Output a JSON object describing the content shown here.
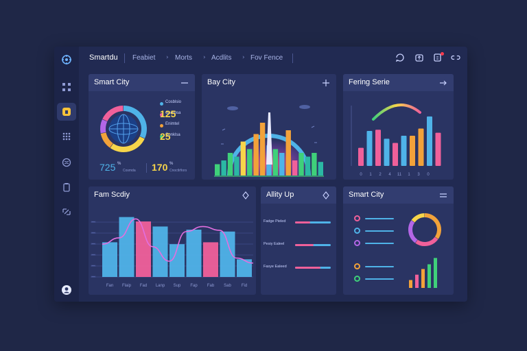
{
  "app": {
    "brand": "Smartdu"
  },
  "nav": {
    "crumbs": [
      "Feabiet",
      "Morts",
      "Acdlits",
      "Fov Fence"
    ]
  },
  "topbar_icons": [
    "chat-icon",
    "share-icon",
    "notification-icon",
    "link-icon"
  ],
  "sidebar": {
    "items": [
      "logo-icon",
      "grid-icon",
      "home-icon",
      "apps-icon",
      "globe-icon",
      "clipboard-icon",
      "analytics-icon",
      "user-icon"
    ]
  },
  "colors": {
    "blue": "#4fb3e8",
    "pink": "#f0609a",
    "orange": "#f2a23a",
    "yellow": "#f7d54a",
    "green": "#3fd07a",
    "purple": "#b366e6",
    "teal": "#2bb8a4"
  },
  "card1": {
    "title": "Smart City",
    "legend": [
      {
        "label": "Cosblsio",
        "color": "#4fb3e8"
      },
      {
        "label": "Gsotbsa",
        "color": "#f0609a"
      },
      {
        "label": "Enimtel",
        "color": "#f2a23a"
      },
      {
        "label": "Conklsa",
        "color": "#3fd07a"
      }
    ],
    "stat_a": "125",
    "stat_b": "25",
    "bottom_a": "725",
    "bottom_a_sup": "%",
    "bottom_a_sub": "Cosmda",
    "bottom_b": "170",
    "bottom_b_sup": "%",
    "bottom_b_sub": "Cnoctlrfiors",
    "ring": [
      {
        "color": "#4fb3e8",
        "value": 32
      },
      {
        "color": "#f7d54a",
        "value": 28
      },
      {
        "color": "#f2a23a",
        "value": 12
      },
      {
        "color": "#b366e6",
        "value": 10
      },
      {
        "color": "#f0609a",
        "value": 18
      }
    ]
  },
  "card2": {
    "title": "Bay City",
    "buildings": [
      {
        "h": 0.15,
        "c": "#3fd07a"
      },
      {
        "h": 0.2,
        "c": "#2bb8a4"
      },
      {
        "h": 0.3,
        "c": "#3fd07a"
      },
      {
        "h": 0.25,
        "c": "#2bb8a4"
      },
      {
        "h": 0.45,
        "c": "#f7d54a"
      },
      {
        "h": 0.35,
        "c": "#3fd07a"
      },
      {
        "h": 0.55,
        "c": "#f2a23a"
      },
      {
        "h": 0.7,
        "c": "#f2a23a"
      },
      {
        "h": 0.4,
        "c": "#4fb3e8"
      },
      {
        "h": 0.35,
        "c": "#3fd07a"
      },
      {
        "h": 0.3,
        "c": "#4fb3e8"
      },
      {
        "h": 0.6,
        "c": "#f2a23a"
      },
      {
        "h": 0.2,
        "c": "#f0609a"
      },
      {
        "h": 0.3,
        "c": "#3fd07a"
      },
      {
        "h": 0.25,
        "c": "#2bb8a4"
      },
      {
        "h": 0.3,
        "c": "#3fd07a"
      },
      {
        "h": 0.18,
        "c": "#2bb8a4"
      }
    ]
  },
  "card3": {
    "title": "Fering Serie",
    "xticks": [
      "0",
      "1",
      "2",
      "4",
      "11",
      "1",
      "3",
      "0"
    ],
    "bars": [
      {
        "v": 0.3,
        "c": "#f0609a"
      },
      {
        "v": 0.58,
        "c": "#4fb3e8"
      },
      {
        "v": 0.6,
        "c": "#f0609a"
      },
      {
        "v": 0.45,
        "c": "#4fb3e8"
      },
      {
        "v": 0.38,
        "c": "#f0609a"
      },
      {
        "v": 0.5,
        "c": "#4fb3e8"
      },
      {
        "v": 0.5,
        "c": "#f2a23a"
      },
      {
        "v": 0.62,
        "c": "#f2a23a"
      },
      {
        "v": 0.82,
        "c": "#4fb3e8"
      },
      {
        "v": 0.55,
        "c": "#f0609a"
      }
    ]
  },
  "card4": {
    "title": "Fam Scdiy",
    "xticks": [
      "Fan",
      "Flaip",
      "Fad",
      "Lanp",
      "Sup",
      "Fap",
      "Fab",
      "Sab",
      "Fid"
    ],
    "bars": [
      {
        "v": 0.55,
        "c": "#4fb3e8"
      },
      {
        "v": 0.95,
        "c": "#4fb3e8"
      },
      {
        "v": 0.88,
        "c": "#f0609a"
      },
      {
        "v": 0.8,
        "c": "#4fb3e8"
      },
      {
        "v": 0.52,
        "c": "#4fb3e8"
      },
      {
        "v": 0.75,
        "c": "#4fb3e8"
      },
      {
        "v": 0.55,
        "c": "#f0609a"
      },
      {
        "v": 0.72,
        "c": "#4fb3e8"
      },
      {
        "v": 0.28,
        "c": "#4fb3e8"
      }
    ],
    "line": [
      0.52,
      0.62,
      0.92,
      0.48,
      0.25,
      0.72,
      0.8,
      0.74,
      0.3,
      0.22
    ]
  },
  "card5": {
    "title": "Allity Up",
    "rows": [
      {
        "label": "Fadge Pieled",
        "fill": 0.42,
        "color": "#f0609a"
      },
      {
        "label": "Pesiy Ealeel",
        "fill": 0.52,
        "color": "#f0609a"
      },
      {
        "label": "Fasye Ealeed",
        "fill": 0.72,
        "color": "#f0609a"
      }
    ]
  },
  "card6": {
    "title": "Smart City",
    "rows": [
      {
        "color": "#f0609a"
      },
      {
        "color": "#4fb3e8"
      },
      {
        "color": "#b366e6"
      },
      {
        "color": "#f2a23a"
      },
      {
        "color": "#3fd07a"
      }
    ],
    "ring": [
      {
        "color": "#f2a23a",
        "value": 35
      },
      {
        "color": "#f0609a",
        "value": 25
      },
      {
        "color": "#b366e6",
        "value": 25
      },
      {
        "color": "#f7d54a",
        "value": 15
      }
    ],
    "bars": [
      {
        "v": 0.25,
        "c": "#f2a23a"
      },
      {
        "v": 0.42,
        "c": "#f0609a"
      },
      {
        "v": 0.6,
        "c": "#f2a23a"
      },
      {
        "v": 0.75,
        "c": "#3fd07a"
      },
      {
        "v": 0.95,
        "c": "#3fd07a"
      }
    ]
  }
}
